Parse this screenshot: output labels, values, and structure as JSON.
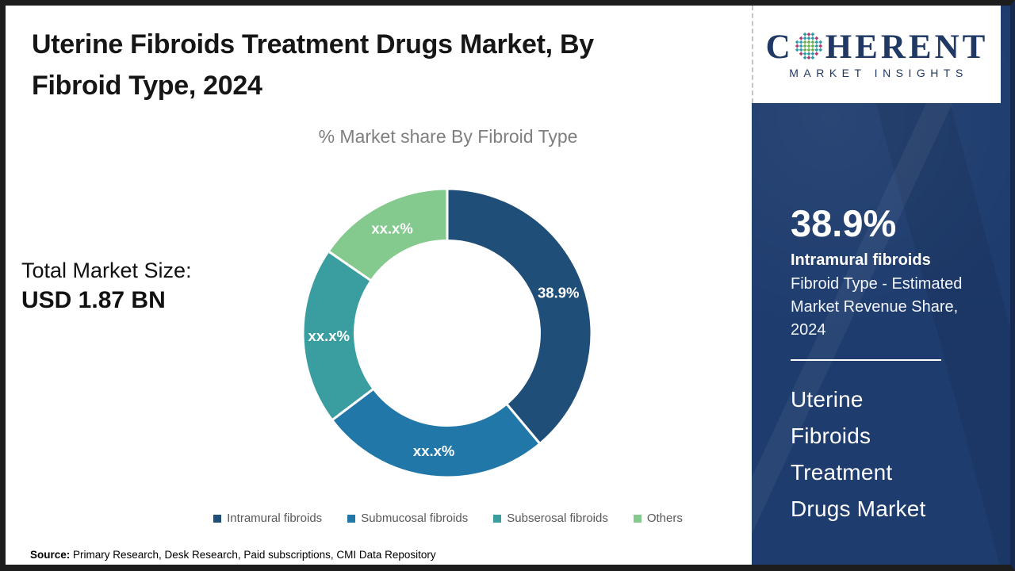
{
  "header": {
    "title_line1": "Uterine Fibroids Treatment Drugs Market, By",
    "title_line2": "Fibroid Type, 2024"
  },
  "brand": {
    "name_left": "C",
    "name_right": "HERENT",
    "tagline": "MARKET INSIGHTS",
    "navy": "#1f3864"
  },
  "main": {
    "chart_title": "% Market share By Fibroid Type",
    "total_label": "Total Market Size:",
    "total_value": "USD 1.87 BN"
  },
  "chart_data": {
    "type": "pie",
    "variant": "donut",
    "title": "% Market share By Fibroid Type",
    "categories": [
      "Intramural fibroids",
      "Submucosal fibroids",
      "Subserosal fibroids",
      "Others"
    ],
    "values": [
      38.9,
      25.8,
      19.9,
      15.4
    ],
    "slice_labels": [
      "38.9%",
      "xx.x%",
      "xx.x%",
      "xx.x%"
    ],
    "colors": [
      "#1F4E79",
      "#2077A8",
      "#3A9EA0",
      "#84C98E"
    ],
    "start_angle_deg": 0,
    "direction": "clockwise",
    "inner_radius_ratio": 0.64,
    "legend_position": "bottom",
    "note": "Only the Intramural fibroids share (38.9%) is disclosed; other slices are masked as xx.x%"
  },
  "sidebar": {
    "stat_value": "38.9%",
    "stat_label": "Intramural fibroids",
    "stat_desc": "Fibroid Type - Estimated Market Revenue Share, 2024",
    "market_name": "Uterine Fibroids Treatment Drugs Market",
    "background": "#1e3c6e"
  },
  "footer": {
    "source_label": "Source:",
    "source_text": " Primary Research, Desk Research, Paid subscriptions, CMI Data Repository"
  }
}
